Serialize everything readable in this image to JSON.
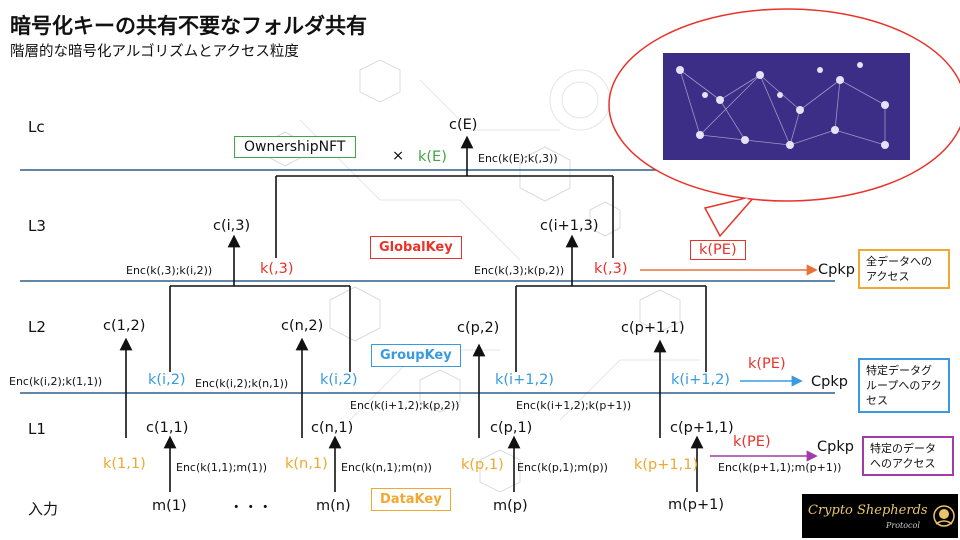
{
  "header": {
    "title": "暗号化キーの共有不要なフォルダ共有",
    "subtitle": "階層的な暗号化アルゴリズムとアクセス粒度"
  },
  "levels": {
    "lc": "Lc",
    "l3": "L3",
    "l2": "L2",
    "l1": "L1",
    "input": "入力"
  },
  "nodes": {
    "cE": "c(E)",
    "ci3": "c(i,3)",
    "ci13": "c(i+1,3)",
    "c12": "c(1,2)",
    "cn2": "c(n,2)",
    "cp2": "c(p,2)",
    "cp12": "c(p+1,1)",
    "c11": "c(1,1)",
    "cn1": "c(n,1)",
    "cp1": "c(p,1)",
    "cp11": "c(p+1,1)"
  },
  "inputs": {
    "m1": "m(1)",
    "dots": "・・・",
    "mn": "m(n)",
    "mp": "m(p)",
    "mp1": "m(p+1)"
  },
  "keys": {
    "kE": "k(E)",
    "times": "×",
    "k3a": "k(,3)",
    "k3b": "k(,3)",
    "kPE_l3": "k(PE)",
    "ki2a": "k(i,2)",
    "ki2b": "k(i,2)",
    "ki12a": "k(i+1,2)",
    "ki12b": "k(i+1,2)",
    "kPE_l2": "k(PE)",
    "k11": "k(1,1)",
    "kn1": "k(n,1)",
    "kp1": "k(p,1)",
    "kp11": "k(p+1,1)",
    "kPE_l1": "k(PE)"
  },
  "enc": {
    "e1": "Enc(k(E);k(,3))",
    "e2": "Enc(k(,3);k(i,2))",
    "e3": "Enc(k(,3);k(p,2))",
    "e4": "Enc(k(i,2);k(1,1))",
    "e5": "Enc(k(i,2);k(n,1))",
    "e6": "Enc(k(i+1,2);k(p,2))",
    "e7": "Enc(k(i+1,2);k(p+1))",
    "e8": "Enc(k(1,1);m(1))",
    "e9": "Enc(k(n,1);m(n))",
    "e10": "Enc(k(p,1);m(p))",
    "e11": "Enc(k(p+1,1);m(p+1))"
  },
  "labels": {
    "ownership": "OwnershipNFT",
    "global": "GlobalKey",
    "group": "GroupKey",
    "data": "DataKey"
  },
  "side": {
    "cpkp1": "Cpkp",
    "cpkp2": "Cpkp",
    "cpkp3": "Cpkp",
    "box1": "全データへのアクセス",
    "box2": "特定データグループへのアクセス",
    "box3": "特定のデータへのアクセス"
  },
  "brand": {
    "name": "Crypto Shepherds",
    "sub": "Protocol"
  },
  "colors": {
    "yellow": "#f0a830",
    "blue": "#3a9ae0",
    "red": "#e8332a",
    "green": "#44a545",
    "purple": "#a23aa8",
    "line": "#2e5f8c",
    "network_bg": "#3c2e86"
  }
}
